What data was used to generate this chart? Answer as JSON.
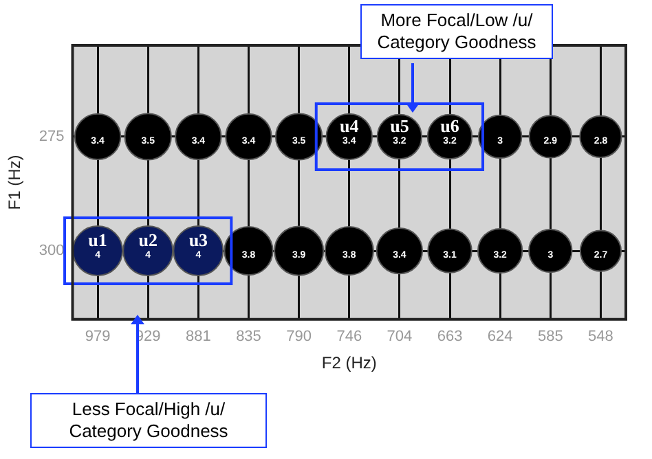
{
  "chart_data": {
    "type": "bubble",
    "xlabel": "F2 (Hz)",
    "ylabel": "F1 (Hz)",
    "categories": [
      "979",
      "929",
      "881",
      "835",
      "790",
      "746",
      "704",
      "663",
      "624",
      "585",
      "548"
    ],
    "ylim": [
      315,
      255
    ],
    "yticks": [
      275,
      300
    ],
    "grid": true,
    "legend": false,
    "series": [
      {
        "color": "#000000",
        "values": [
          275,
          275,
          275,
          275,
          275,
          275,
          275,
          275,
          275,
          275,
          275
        ],
        "sizes": [
          3.4,
          3.5,
          3.4,
          3.4,
          3.5,
          3.4,
          3.2,
          3.2,
          3,
          2.9,
          2.8
        ],
        "value_labels": [
          "3.4",
          "3.5",
          "3.4",
          "3.4",
          "3.5",
          "3.4",
          "3.2",
          "3.2",
          "3",
          "2.9",
          "2.8"
        ]
      },
      {
        "colors": [
          "#0b1a5e",
          "#0b1a5e",
          "#0b1a5e",
          "#000000",
          "#000000",
          "#000000",
          "#000000",
          "#000000",
          "#000000",
          "#000000",
          "#000000"
        ],
        "values": [
          300,
          300,
          300,
          300,
          300,
          300,
          300,
          300,
          300,
          300,
          300
        ],
        "sizes": [
          4,
          4,
          4,
          3.8,
          3.9,
          3.8,
          3.4,
          3.1,
          3.2,
          3,
          2.7
        ],
        "value_labels": [
          "4",
          "4",
          "4",
          "3.8",
          "3.9",
          "3.8",
          "3.4",
          "3.1",
          "3.2",
          "3",
          "2.7"
        ]
      }
    ],
    "annotations": [
      "More Focal/Low /u/ Category Goodness",
      "Less Focal/High /u/ Category Goodness",
      {
        "text": "u1",
        "x": "979",
        "y": 300
      },
      {
        "text": "u2",
        "x": "929",
        "y": 300
      },
      {
        "text": "u3",
        "x": "881",
        "y": 300
      },
      {
        "text": "u4",
        "x": "746",
        "y": 275
      },
      {
        "text": "u5",
        "x": "704",
        "y": 275
      },
      {
        "text": "u6",
        "x": "663",
        "y": 275
      }
    ]
  }
}
